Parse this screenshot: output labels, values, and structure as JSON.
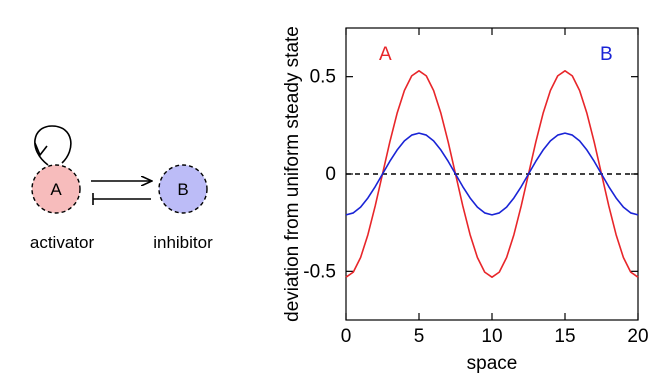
{
  "diagram": {
    "node_a": {
      "letter": "A",
      "caption": "activator",
      "fill": "#f7bcbc"
    },
    "node_b": {
      "letter": "B",
      "caption": "inhibitor",
      "fill": "#bcbcf7"
    }
  },
  "chart_data": {
    "type": "line",
    "xlabel": "space",
    "ylabel": "deviation from uniform steady state",
    "xlim": [
      0,
      20
    ],
    "ylim": [
      -0.75,
      0.75
    ],
    "x_ticks": [
      0,
      5,
      10,
      15,
      20
    ],
    "x_tick_labels": [
      "0",
      "5",
      "10",
      "15",
      "20"
    ],
    "y_ticks": [
      -0.5,
      0,
      0.5
    ],
    "y_tick_labels": [
      "-0.5",
      "0",
      "0.5"
    ],
    "grid": false,
    "series": [
      {
        "name": "A",
        "color": "#e8262a",
        "x": [
          0,
          0.5,
          1,
          1.5,
          2,
          2.5,
          3,
          3.5,
          4,
          4.5,
          5,
          5.5,
          6,
          6.5,
          7,
          7.5,
          8,
          8.5,
          9,
          9.5,
          10,
          10.5,
          11,
          11.5,
          12,
          12.5,
          13,
          13.5,
          14,
          14.5,
          15,
          15.5,
          16,
          16.5,
          17,
          17.5,
          18,
          18.5,
          19,
          19.5,
          20
        ],
        "values": [
          -0.53,
          -0.504,
          -0.429,
          -0.312,
          -0.164,
          0,
          0.164,
          0.312,
          0.429,
          0.504,
          0.53,
          0.504,
          0.429,
          0.312,
          0.164,
          0,
          -0.164,
          -0.312,
          -0.429,
          -0.504,
          -0.53,
          -0.504,
          -0.429,
          -0.312,
          -0.164,
          0,
          0.164,
          0.312,
          0.429,
          0.504,
          0.53,
          0.504,
          0.429,
          0.312,
          0.164,
          0,
          -0.164,
          -0.312,
          -0.429,
          -0.504,
          -0.53
        ]
      },
      {
        "name": "B",
        "color": "#1a24d6",
        "x": [
          0,
          0.5,
          1,
          1.5,
          2,
          2.5,
          3,
          3.5,
          4,
          4.5,
          5,
          5.5,
          6,
          6.5,
          7,
          7.5,
          8,
          8.5,
          9,
          9.5,
          10,
          10.5,
          11,
          11.5,
          12,
          12.5,
          13,
          13.5,
          14,
          14.5,
          15,
          15.5,
          16,
          16.5,
          17,
          17.5,
          18,
          18.5,
          19,
          19.5,
          20
        ],
        "values": [
          -0.21,
          -0.2,
          -0.17,
          -0.123,
          -0.065,
          0,
          0.065,
          0.123,
          0.17,
          0.2,
          0.21,
          0.2,
          0.17,
          0.123,
          0.065,
          0,
          -0.065,
          -0.123,
          -0.17,
          -0.2,
          -0.21,
          -0.2,
          -0.17,
          -0.123,
          -0.065,
          0,
          0.065,
          0.123,
          0.17,
          0.2,
          0.21,
          0.2,
          0.17,
          0.123,
          0.065,
          0,
          -0.065,
          -0.123,
          -0.17,
          -0.2,
          -0.21
        ]
      }
    ],
    "reference_line": {
      "y": 0,
      "style": "dashed",
      "color": "#000000"
    }
  }
}
